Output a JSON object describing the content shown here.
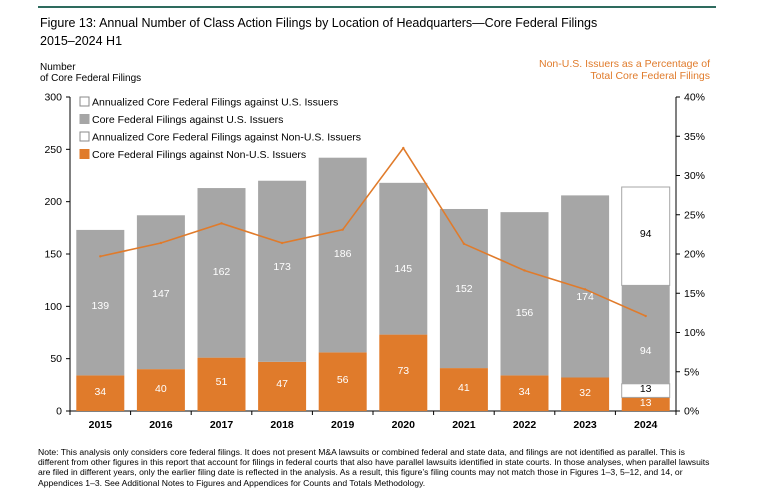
{
  "figure": {
    "title_line1": "Figure 13: Annual Number of Class Action Filings by Location of Headquarters—Core Federal Filings",
    "title_line2": "2015–2024 H1",
    "left_axis_label_1": "Number",
    "left_axis_label_2": "of Core Federal Filings",
    "right_axis_label_1": "Non-U.S. Issuers as a Percentage of",
    "right_axis_label_2": "Total Core Federal Filings",
    "note": "Note: This analysis only considers core federal filings. It does not present M&A lawsuits or combined federal and state data, and filings are not identified as parallel. This is different from other figures in this report that account for filings in federal courts that also have parallel lawsuits identified in state courts. In those analyses, when parallel lawsuits are filed in different years, only the earlier filing date is reflected in the analysis. As a result, this figure’s filing counts may not match those in Figures 1–3, 5–12, and 14, or Appendices 1–3. See Additional Notes to Figures and Appendices for Counts and Totals Methodology."
  },
  "colors": {
    "us": "#a6a6a6",
    "nonus": "#e07b2b",
    "annual_outline": "#a6a6a6",
    "line": "#e07b2b",
    "title_rule": "#2e6b5e"
  },
  "chart_data": {
    "type": "bar",
    "stacked": true,
    "categories": [
      "2015",
      "2016",
      "2017",
      "2018",
      "2019",
      "2020",
      "2021",
      "2022",
      "2023",
      "2024"
    ],
    "series": [
      {
        "name": "Core Federal Filings against Non-U.S. Issuers",
        "values": [
          34,
          40,
          51,
          47,
          56,
          73,
          41,
          34,
          32,
          13
        ]
      },
      {
        "name": "Core Federal Filings against U.S. Issuers",
        "values": [
          139,
          147,
          162,
          173,
          186,
          145,
          152,
          156,
          174,
          94
        ]
      },
      {
        "name": "Annualized Core Federal Filings against Non-U.S. Issuers",
        "values": [
          0,
          0,
          0,
          0,
          0,
          0,
          0,
          0,
          0,
          13
        ]
      },
      {
        "name": "Annualized Core Federal Filings against U.S. Issuers",
        "values": [
          0,
          0,
          0,
          0,
          0,
          0,
          0,
          0,
          0,
          94
        ]
      }
    ],
    "line_series": {
      "name": "Non-U.S. Issuers as a Percentage of Total Core Federal Filings",
      "axis": "right",
      "values": [
        19.7,
        21.4,
        23.9,
        21.4,
        23.1,
        33.5,
        21.3,
        17.9,
        15.5,
        12.1
      ]
    },
    "bar_labels": {
      "nonus": [
        "34",
        "40",
        "51",
        "47",
        "56",
        "73",
        "41",
        "34",
        "32",
        "13"
      ],
      "us": [
        "139",
        "147",
        "162",
        "173",
        "186",
        "145",
        "152",
        "156",
        "174",
        "94"
      ],
      "annual_nonus": [
        "",
        "",
        "",
        "",
        "",
        "",
        "",
        "",
        "",
        "13"
      ],
      "annual_us": [
        "",
        "",
        "",
        "",
        "",
        "",
        "",
        "",
        "",
        "94"
      ]
    },
    "legend": [
      {
        "label": "Annualized Core Federal Filings against U.S. Issuers",
        "style": "outline"
      },
      {
        "label": "Core Federal Filings against U.S. Issuers",
        "style": "us"
      },
      {
        "label": "Annualized Core Federal Filings against Non-U.S. Issuers",
        "style": "outline"
      },
      {
        "label": "Core Federal Filings against Non-U.S. Issuers",
        "style": "nonus"
      }
    ],
    "legend_position": "top-left",
    "ylim_left": [
      0,
      300
    ],
    "yticks_left": [
      "0",
      "50",
      "100",
      "150",
      "200",
      "250",
      "300"
    ],
    "ylim_right": [
      0,
      40
    ],
    "yticks_right": [
      "0%",
      "5%",
      "10%",
      "15%",
      "20%",
      "25%",
      "30%",
      "35%",
      "40%"
    ],
    "grid": false
  }
}
